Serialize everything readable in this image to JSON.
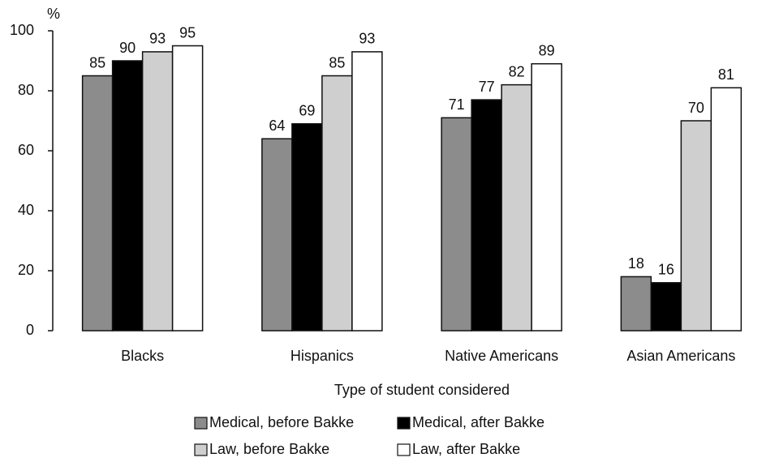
{
  "chart_data": {
    "type": "bar",
    "y_axis_label": "%",
    "x_axis_label": "Type of student considered",
    "categories": [
      "Blacks",
      "Hispanics",
      "Native Americans",
      "Asian Americans"
    ],
    "series": [
      {
        "name": "Medical, before Bakke",
        "color": "#8c8c8c",
        "values": [
          85,
          64,
          71,
          18
        ]
      },
      {
        "name": "Medical, after Bakke",
        "color": "#000000",
        "values": [
          90,
          69,
          77,
          16
        ]
      },
      {
        "name": "Law, before Bakke",
        "color": "#cfcfcf",
        "values": [
          93,
          85,
          82,
          70
        ]
      },
      {
        "name": "Law, after Bakke",
        "color": "#ffffff",
        "values": [
          95,
          93,
          89,
          81
        ]
      }
    ],
    "ylim": [
      0,
      100
    ],
    "yticks": [
      0,
      20,
      40,
      60,
      80,
      100
    ],
    "data_labels": true
  }
}
